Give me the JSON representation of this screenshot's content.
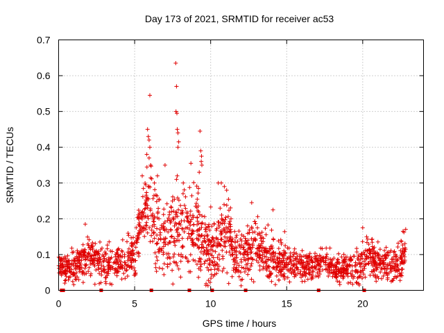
{
  "chart_data": {
    "type": "scatter",
    "title": "Day 173 of 2021, SRMTID for receiver ac53",
    "xlabel": "GPS time / hours",
    "ylabel": "SRMTID / TECUs",
    "xlim": [
      0,
      24
    ],
    "ylim": [
      0,
      0.7
    ],
    "x_ticks": [
      0,
      5,
      10,
      15,
      20
    ],
    "y_ticks": [
      0,
      0.1,
      0.2,
      0.3,
      0.4,
      0.5,
      0.6,
      0.7
    ],
    "x_tick_labels": [
      "0",
      "5",
      "10",
      "15",
      "20"
    ],
    "y_tick_labels": [
      "0",
      "0.1",
      "0.2",
      "0.3",
      "0.4",
      "0.5",
      "0.6",
      "0.7"
    ],
    "grid": true,
    "marker": "+",
    "color": "#e00000",
    "baseline_markers_x": [
      0.2,
      0.3,
      2.8,
      6.1,
      8.6,
      10.1,
      12.3,
      17.1,
      20.1
    ],
    "trend": {
      "x": [
        0,
        0.5,
        1,
        1.5,
        2,
        2.5,
        3,
        3.5,
        4,
        4.5,
        5,
        5.3,
        5.6,
        6,
        6.4,
        6.8,
        7.2,
        7.6,
        8,
        8.4,
        8.8,
        9.2,
        9.6,
        10,
        10.5,
        11,
        11.5,
        12,
        12.5,
        13,
        13.5,
        14,
        14.5,
        15,
        15.5,
        16,
        16.5,
        17,
        17.5,
        18,
        18.5,
        19,
        19.5,
        20,
        20.5,
        21,
        21.5,
        22,
        22.5,
        22.8
      ],
      "y": [
        0.07,
        0.06,
        0.06,
        0.08,
        0.1,
        0.09,
        0.07,
        0.07,
        0.08,
        0.09,
        0.1,
        0.17,
        0.22,
        0.25,
        0.16,
        0.14,
        0.15,
        0.17,
        0.16,
        0.18,
        0.16,
        0.17,
        0.12,
        0.1,
        0.13,
        0.16,
        0.1,
        0.09,
        0.11,
        0.13,
        0.1,
        0.08,
        0.08,
        0.08,
        0.07,
        0.06,
        0.06,
        0.07,
        0.08,
        0.07,
        0.06,
        0.06,
        0.05,
        0.08,
        0.1,
        0.08,
        0.07,
        0.07,
        0.08,
        0.1
      ]
    },
    "spread": {
      "x": [
        0,
        2,
        4,
        5.5,
        6,
        7,
        7.7,
        8.5,
        9.3,
        10.5,
        11,
        12,
        13,
        14,
        15,
        18,
        20,
        22,
        22.8
      ],
      "y": [
        0.04,
        0.06,
        0.05,
        0.08,
        0.12,
        0.1,
        0.15,
        0.12,
        0.12,
        0.1,
        0.12,
        0.08,
        0.08,
        0.07,
        0.05,
        0.04,
        0.06,
        0.05,
        0.06
      ]
    },
    "outliers": [
      {
        "x": 6.0,
        "y": 0.545
      },
      {
        "x": 7.7,
        "y": 0.635
      },
      {
        "x": 7.75,
        "y": 0.57
      },
      {
        "x": 7.72,
        "y": 0.5
      },
      {
        "x": 7.78,
        "y": 0.495
      },
      {
        "x": 7.8,
        "y": 0.45
      },
      {
        "x": 7.85,
        "y": 0.44
      },
      {
        "x": 7.9,
        "y": 0.415
      },
      {
        "x": 7.85,
        "y": 0.4
      },
      {
        "x": 9.3,
        "y": 0.445
      },
      {
        "x": 9.35,
        "y": 0.39
      },
      {
        "x": 9.4,
        "y": 0.375
      },
      {
        "x": 9.38,
        "y": 0.36
      },
      {
        "x": 9.42,
        "y": 0.35
      },
      {
        "x": 5.85,
        "y": 0.45
      },
      {
        "x": 5.9,
        "y": 0.43
      },
      {
        "x": 5.95,
        "y": 0.42
      },
      {
        "x": 6.0,
        "y": 0.4
      },
      {
        "x": 5.8,
        "y": 0.38
      },
      {
        "x": 5.95,
        "y": 0.37
      },
      {
        "x": 6.05,
        "y": 0.35
      },
      {
        "x": 7.0,
        "y": 0.35
      },
      {
        "x": 7.8,
        "y": 0.32
      },
      {
        "x": 7.75,
        "y": 0.31
      },
      {
        "x": 8.7,
        "y": 0.355
      },
      {
        "x": 9.25,
        "y": 0.33
      },
      {
        "x": 10.7,
        "y": 0.3
      },
      {
        "x": 10.9,
        "y": 0.29
      },
      {
        "x": 11.05,
        "y": 0.28
      },
      {
        "x": 10.5,
        "y": 0.3
      },
      {
        "x": 6.3,
        "y": 0.3
      },
      {
        "x": 6.5,
        "y": 0.32
      },
      {
        "x": 5.5,
        "y": 0.32
      },
      {
        "x": 9.2,
        "y": 0.285
      },
      {
        "x": 8.2,
        "y": 0.3
      },
      {
        "x": 12.7,
        "y": 0.245
      },
      {
        "x": 14.1,
        "y": 0.225
      },
      {
        "x": 1.75,
        "y": 0.185
      },
      {
        "x": 20.0,
        "y": 0.175
      },
      {
        "x": 22.65,
        "y": 0.165
      }
    ],
    "n_points": 1900,
    "data_window": [
      0,
      22.85
    ],
    "seed": 173
  }
}
